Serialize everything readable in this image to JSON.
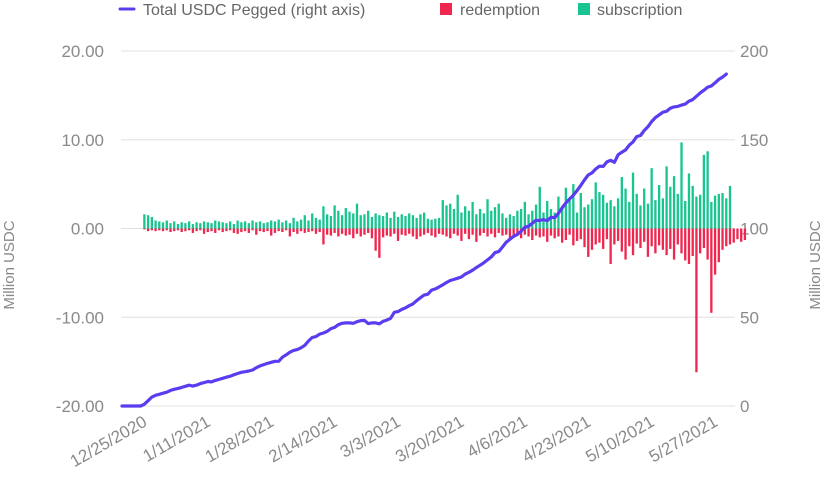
{
  "chart_data": {
    "type": "bar+line",
    "legend": [
      {
        "label": "Total USDC Pegged (right axis)",
        "kind": "line",
        "color": "#5b3cf0"
      },
      {
        "label": "redemption",
        "kind": "box",
        "color": "#f0264f"
      },
      {
        "label": "subscription",
        "kind": "box",
        "color": "#18c48f"
      }
    ],
    "legend_position": "top",
    "grid": true,
    "ylabel_left": "Million USDC",
    "ylabel_right": "Million USDC",
    "y_left": {
      "min": -20,
      "max": 20,
      "ticks": [
        20,
        10,
        0,
        -10,
        -20
      ],
      "tick_labels": [
        "20.00",
        "10.00",
        "0.00",
        "-10.00",
        "-20.00"
      ]
    },
    "y_right": {
      "min": 0,
      "max": 200,
      "ticks": [
        200,
        150,
        100,
        50,
        0
      ],
      "tick_labels": [
        "200",
        "150",
        "100",
        "50",
        "0"
      ]
    },
    "x_tick_labels": [
      "12/25/2020",
      "1/11/2021",
      "1/28/2021",
      "2/14/2021",
      "3/3/2021",
      "3/20/2021",
      "4/6/2021",
      "4/23/2021",
      "5/10/2021",
      "5/27/2021"
    ],
    "x_tick_indices": [
      7,
      24,
      41,
      58,
      75,
      92,
      109,
      126,
      143,
      160
    ],
    "first_date": "12/18/2020",
    "day_count": 165,
    "subscription": [
      0,
      0,
      0,
      0,
      0,
      0,
      1.6,
      1.5,
      1.3,
      0.9,
      0.8,
      0.7,
      0.9,
      0.6,
      0.8,
      0.5,
      0.7,
      0.6,
      0.8,
      0.5,
      0.7,
      0.6,
      0.8,
      0.7,
      0.6,
      0.9,
      0.8,
      0.7,
      0.6,
      0.8,
      0.5,
      0.9,
      0.7,
      0.8,
      0.6,
      0.9,
      0.7,
      0.8,
      0.6,
      0.7,
      0.9,
      0.8,
      1.0,
      0.7,
      0.9,
      0.6,
      1.2,
      0.8,
      1.0,
      1.5,
      0.9,
      1.7,
      1.2,
      1.0,
      2.5,
      1.6,
      1.4,
      2.6,
      2.0,
      1.5,
      2.3,
      1.9,
      1.7,
      2.8,
      1.5,
      1.6,
      2.0,
      1.3,
      1.7,
      1.5,
      1.4,
      1.8,
      1.2,
      1.9,
      1.3,
      1.6,
      1.4,
      1.7,
      1.5,
      1.2,
      1.6,
      1.8,
      1.1,
      1.0,
      1.1,
      1.2,
      3.2,
      2.6,
      2.8,
      2.2,
      3.8,
      1.8,
      2.5,
      2.0,
      3.0,
      1.6,
      2.2,
      1.7,
      3.3,
      2.0,
      2.4,
      2.8,
      1.7,
      1.2,
      1.6,
      1.4,
      2.0,
      2.2,
      3.0,
      1.6,
      2.0,
      2.7,
      4.7,
      1.8,
      3.1,
      2.2,
      1.8,
      3.6,
      2.3,
      4.6,
      3.3,
      5.0,
      1.8,
      4.0,
      2.4,
      2.7,
      3.3,
      5.2,
      4.1,
      3.8,
      2.9,
      3.2,
      2.5,
      3.4,
      5.8,
      4.5,
      3.0,
      6.3,
      3.9,
      2.6,
      4.5,
      2.8,
      6.8,
      3.2,
      4.9,
      3.4,
      7.0,
      4.7,
      5.9,
      3.9,
      9.7,
      3.1,
      6.2,
      4.8,
      3.6,
      3.8,
      8.3,
      8.7,
      3.0,
      3.7,
      3.9,
      4.0,
      3.4,
      4.8
    ],
    "redemption": [
      0,
      0,
      0,
      0,
      0,
      0,
      -0.1,
      -0.3,
      -0.2,
      -0.3,
      -0.2,
      -0.3,
      -0.2,
      -0.4,
      -0.3,
      -0.2,
      -0.4,
      -0.3,
      -0.2,
      -0.5,
      -0.3,
      -0.2,
      -0.6,
      -0.4,
      -0.3,
      -0.5,
      -0.2,
      -0.4,
      -0.3,
      -0.2,
      -0.5,
      -0.6,
      -0.4,
      -0.3,
      -0.5,
      -0.2,
      -0.7,
      -0.3,
      -0.4,
      -0.3,
      -0.8,
      -0.5,
      -0.3,
      -0.4,
      -0.2,
      -0.9,
      -0.4,
      -0.6,
      -0.3,
      -0.5,
      -0.4,
      -0.3,
      -0.6,
      -0.4,
      -1.8,
      -0.7,
      -0.8,
      -0.5,
      -0.9,
      -0.6,
      -0.8,
      -0.7,
      -1.1,
      -0.6,
      -0.9,
      -0.7,
      -0.5,
      -1.1,
      -2.5,
      -3.3,
      -1.0,
      -0.8,
      -0.9,
      -0.6,
      -1.4,
      -0.7,
      -0.8,
      -0.6,
      -0.9,
      -1.2,
      -0.9,
      -0.7,
      -0.5,
      -0.8,
      -1.0,
      -0.6,
      -0.7,
      -0.9,
      -1.1,
      -0.6,
      -0.8,
      -1.4,
      -0.6,
      -1.2,
      -0.7,
      -1.5,
      -0.8,
      -0.5,
      -0.9,
      -0.6,
      -1.0,
      -0.5,
      -0.8,
      -0.7,
      -1.2,
      -0.9,
      -0.6,
      -1.1,
      -0.7,
      -0.9,
      -1.3,
      -0.8,
      -1.0,
      -0.9,
      -1.5,
      -0.8,
      -1.1,
      -0.9,
      -1.6,
      -1.3,
      -0.7,
      -1.9,
      -1.4,
      -1.2,
      -2.1,
      -3.2,
      -2.4,
      -1.8,
      -1.6,
      -2.3,
      -1.2,
      -4.0,
      -1.8,
      -1.4,
      -2.6,
      -3.5,
      -2.0,
      -3.0,
      -1.7,
      -2.2,
      -1.5,
      -3.2,
      -2.0,
      -2.8,
      -1.9,
      -2.4,
      -3.0,
      -2.3,
      -3.5,
      -1.8,
      -2.8,
      -3.6,
      -4.0,
      -3.1,
      -16.2,
      -2.8,
      -2.2,
      -3.5,
      -9.5,
      -5.2,
      -3.8,
      -2.4,
      -2.0,
      -1.8,
      -1.6,
      -1.2,
      -1.5,
      -1.3
    ],
    "total_pegged_right_axis": [
      0,
      0,
      0,
      0,
      0,
      0,
      1,
      3,
      5,
      6,
      6.6,
      7.2,
      7.8,
      8.8,
      9.4,
      9.9,
      10.5,
      11.1,
      11.7,
      11.2,
      11.8,
      12.6,
      13.2,
      13.8,
      13.6,
      14.4,
      15,
      15.6,
      16.2,
      16.8,
      17.6,
      18.3,
      19,
      19.3,
      19.7,
      20.3,
      21.6,
      22.6,
      23.3,
      24,
      24.6,
      25.2,
      25.2,
      27.5,
      28.8,
      30.3,
      31.3,
      31.8,
      32.8,
      34.2,
      36.6,
      38.6,
      39.1,
      40.5,
      41.1,
      42,
      43.6,
      44.3,
      45.8,
      46.6,
      46.8,
      46.8,
      46.6,
      47.5,
      48.1,
      48.2,
      46.4,
      46.8,
      46.8,
      46.3,
      47.7,
      48.4,
      49.4,
      52.8,
      53.2,
      54.4,
      55.3,
      56.5,
      57.5,
      59.4,
      61,
      62.5,
      63,
      65.3,
      66,
      67.1,
      68.3,
      69.6,
      70.7,
      71.3,
      72,
      72.7,
      74.3,
      75.3,
      76.5,
      78,
      79.3,
      80.7,
      82.3,
      84,
      86.4,
      87,
      89.6,
      92.2,
      93.9,
      95.6,
      96.7,
      98.5,
      100.7,
      101.3,
      103,
      104.6,
      104.5,
      105,
      104.4,
      106.3,
      106.1,
      108.5,
      111.6,
      114.4,
      116.6,
      118.7,
      121.4,
      124.3,
      127.4,
      130.2,
      131.3,
      133.5,
      135.1,
      135,
      137.5,
      138.4,
      137.3,
      141.5,
      143,
      144.3,
      147,
      148.8,
      151.8,
      152.4,
      155.2,
      157.3,
      160.3,
      162.5,
      164,
      165.5,
      166,
      167.7,
      168.5,
      168.8,
      169.5,
      170.1,
      171.8,
      172.6,
      174.5,
      176.4,
      177.9,
      179.6,
      180.3,
      182.1,
      184,
      185.3,
      187
    ]
  }
}
